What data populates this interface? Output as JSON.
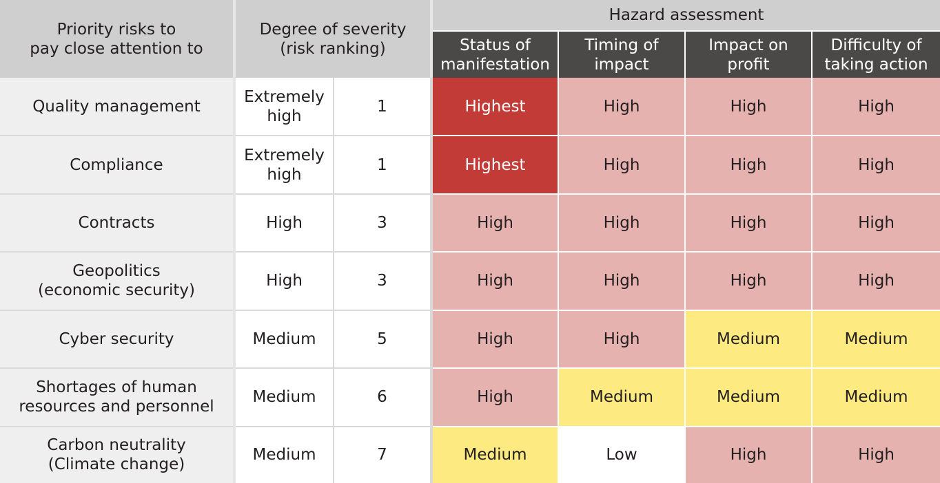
{
  "header": {
    "risk_col": "Priority risks to\npay close attention to",
    "severity_col": "Degree of severity\n(risk ranking)",
    "hazard_group": "Hazard assessment",
    "subcols": [
      "Status of\nmanifestation",
      "Timing of\nimpact",
      "Impact on\nprofit",
      "Difficulty of\ntaking action"
    ]
  },
  "rows": [
    {
      "risk": "Quality management",
      "severity": "Extremely\nhigh",
      "rank": "1",
      "cells": [
        {
          "text": "Highest",
          "level": "highest"
        },
        {
          "text": "High",
          "level": "high"
        },
        {
          "text": "High",
          "level": "high"
        },
        {
          "text": "High",
          "level": "high"
        }
      ]
    },
    {
      "risk": "Compliance",
      "severity": "Extremely\nhigh",
      "rank": "1",
      "cells": [
        {
          "text": "Highest",
          "level": "highest"
        },
        {
          "text": "High",
          "level": "high"
        },
        {
          "text": "High",
          "level": "high"
        },
        {
          "text": "High",
          "level": "high"
        }
      ]
    },
    {
      "risk": "Contracts",
      "severity": "High",
      "rank": "3",
      "cells": [
        {
          "text": "High",
          "level": "high"
        },
        {
          "text": "High",
          "level": "high"
        },
        {
          "text": "High",
          "level": "high"
        },
        {
          "text": "High",
          "level": "high"
        }
      ]
    },
    {
      "risk": "Geopolitics\n(economic security)",
      "severity": "High",
      "rank": "3",
      "cells": [
        {
          "text": "High",
          "level": "high"
        },
        {
          "text": "High",
          "level": "high"
        },
        {
          "text": "High",
          "level": "high"
        },
        {
          "text": "High",
          "level": "high"
        }
      ]
    },
    {
      "risk": "Cyber security",
      "severity": "Medium",
      "rank": "5",
      "cells": [
        {
          "text": "High",
          "level": "high"
        },
        {
          "text": "High",
          "level": "high"
        },
        {
          "text": "Medium",
          "level": "medium"
        },
        {
          "text": "Medium",
          "level": "medium"
        }
      ]
    },
    {
      "risk": "Shortages of human\nresources and personnel",
      "severity": "Medium",
      "rank": "6",
      "cells": [
        {
          "text": "High",
          "level": "high"
        },
        {
          "text": "Medium",
          "level": "medium"
        },
        {
          "text": "Medium",
          "level": "medium"
        },
        {
          "text": "Medium",
          "level": "medium"
        }
      ]
    },
    {
      "risk": "Carbon neutrality\n(Climate change)",
      "severity": "Medium",
      "rank": "7",
      "cells": [
        {
          "text": "Medium",
          "level": "medium"
        },
        {
          "text": "Low",
          "level": "low"
        },
        {
          "text": "High",
          "level": "high"
        },
        {
          "text": "High",
          "level": "high"
        }
      ]
    }
  ],
  "colors": {
    "highest": "#c33b37",
    "high": "#e6b2b0",
    "medium": "#fdea80",
    "low": "#ffffff",
    "subheader": "#4b4848",
    "header": "#cfcfcf"
  }
}
